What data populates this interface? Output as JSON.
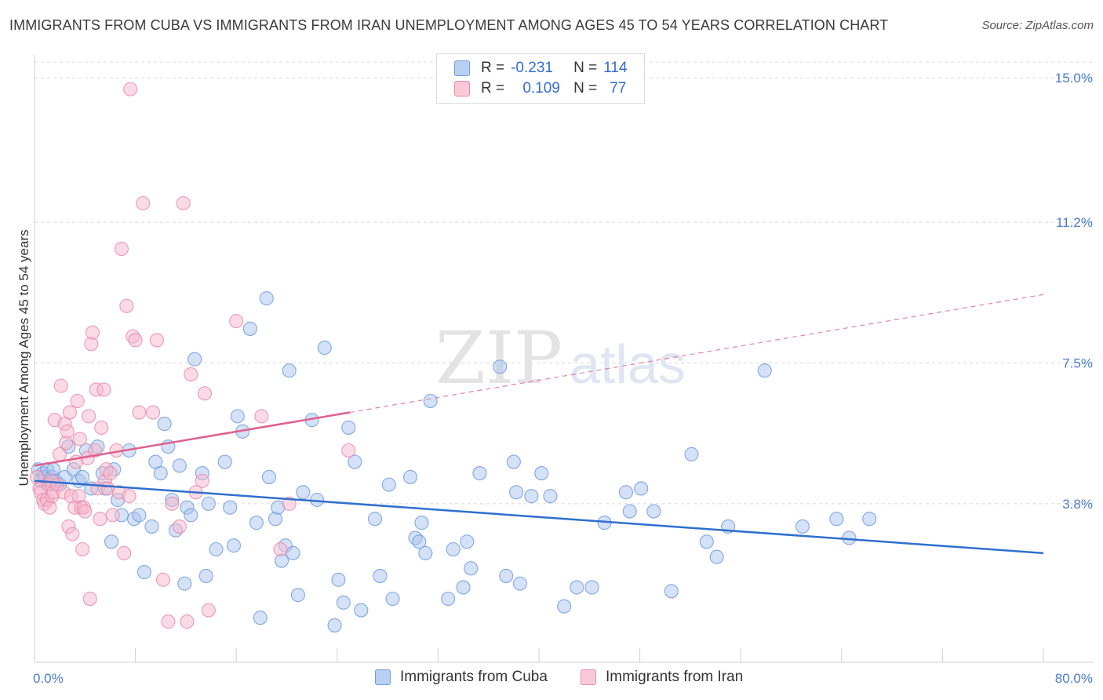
{
  "header": {
    "title": "IMMIGRANTS FROM CUBA VS IMMIGRANTS FROM IRAN UNEMPLOYMENT AMONG AGES 45 TO 54 YEARS CORRELATION CHART",
    "source": "Source: ZipAtlas.com"
  },
  "watermark": {
    "zip": "ZIP",
    "atlas": "atlas"
  },
  "legend": {
    "cuba": {
      "r_label": "R =",
      "r_value": "-0.231",
      "n_label": "N =",
      "n_value": "114"
    },
    "iran": {
      "r_label": "R =",
      "r_value": "0.109",
      "n_label": "N =",
      "n_value": "77"
    }
  },
  "bottom_legend": {
    "cuba": "Immigrants from Cuba",
    "iran": "Immigrants from Iran"
  },
  "colors": {
    "cuba_fill": "#a9c4ee",
    "cuba_stroke": "#6f9be0",
    "cuba_line": "#2f6fcf",
    "iran_fill": "#f5b8cb",
    "iran_stroke": "#e98aa8",
    "iran_line": "#e0608c",
    "tick_text": "#4a7bd0",
    "grid": "#d8d8d8"
  },
  "chart_data": {
    "type": "scatter",
    "title": "IMMIGRANTS FROM CUBA VS IMMIGRANTS FROM IRAN UNEMPLOYMENT AMONG AGES 45 TO 54 YEARS CORRELATION CHART",
    "xlabel": "",
    "ylabel": "Unemployment Among Ages 45 to 54 years",
    "xlim": [
      0,
      80
    ],
    "ylim": [
      0,
      15.6
    ],
    "x_tick_labels": [
      "0.0%",
      "80.0%"
    ],
    "y_ticks": [
      3.8,
      7.5,
      11.2,
      15.0
    ],
    "y_tick_labels": [
      "3.8%",
      "7.5%",
      "11.2%",
      "15.0%"
    ],
    "grid": true,
    "series": [
      {
        "name": "Immigrants from Cuba",
        "r": -0.231,
        "n": 114,
        "trend": {
          "x": [
            0,
            80
          ],
          "y": [
            4.4,
            2.5
          ],
          "style": "solid"
        },
        "points": [
          [
            0.3,
            4.7
          ],
          [
            0.5,
            4.4
          ],
          [
            0.7,
            4.6
          ],
          [
            0.8,
            4.5
          ],
          [
            1.0,
            4.7
          ],
          [
            1.2,
            4.3
          ],
          [
            1.4,
            4.5
          ],
          [
            1.5,
            4.7
          ],
          [
            1.7,
            4.4
          ],
          [
            2.0,
            4.3
          ],
          [
            2.4,
            4.5
          ],
          [
            2.7,
            5.3
          ],
          [
            3.1,
            4.7
          ],
          [
            3.5,
            4.4
          ],
          [
            3.8,
            4.5
          ],
          [
            4.1,
            5.2
          ],
          [
            4.5,
            4.2
          ],
          [
            5.0,
            5.3
          ],
          [
            5.4,
            4.6
          ],
          [
            5.6,
            4.2
          ],
          [
            6.1,
            2.8
          ],
          [
            6.3,
            4.7
          ],
          [
            6.6,
            3.9
          ],
          [
            6.9,
            3.5
          ],
          [
            7.5,
            5.2
          ],
          [
            7.9,
            3.4
          ],
          [
            8.3,
            3.5
          ],
          [
            8.7,
            2.0
          ],
          [
            9.3,
            3.2
          ],
          [
            9.6,
            4.9
          ],
          [
            10.0,
            4.6
          ],
          [
            10.3,
            5.9
          ],
          [
            10.6,
            5.3
          ],
          [
            10.9,
            3.9
          ],
          [
            11.2,
            3.1
          ],
          [
            11.5,
            4.8
          ],
          [
            11.9,
            1.7
          ],
          [
            12.1,
            3.7
          ],
          [
            12.4,
            3.5
          ],
          [
            12.7,
            7.6
          ],
          [
            13.3,
            4.6
          ],
          [
            13.6,
            1.9
          ],
          [
            13.8,
            3.8
          ],
          [
            14.4,
            2.6
          ],
          [
            15.1,
            4.9
          ],
          [
            15.5,
            3.7
          ],
          [
            15.8,
            2.7
          ],
          [
            16.1,
            6.1
          ],
          [
            16.5,
            5.7
          ],
          [
            17.1,
            8.4
          ],
          [
            17.6,
            3.3
          ],
          [
            17.9,
            0.8
          ],
          [
            18.4,
            9.2
          ],
          [
            18.6,
            4.5
          ],
          [
            19.1,
            3.4
          ],
          [
            19.3,
            3.7
          ],
          [
            19.6,
            2.3
          ],
          [
            19.9,
            2.7
          ],
          [
            20.2,
            7.3
          ],
          [
            20.5,
            2.5
          ],
          [
            20.9,
            1.4
          ],
          [
            21.3,
            4.1
          ],
          [
            22.0,
            6.0
          ],
          [
            22.4,
            3.9
          ],
          [
            23.0,
            7.9
          ],
          [
            23.8,
            0.6
          ],
          [
            24.1,
            1.8
          ],
          [
            24.5,
            1.2
          ],
          [
            24.9,
            5.8
          ],
          [
            25.4,
            4.9
          ],
          [
            25.9,
            1.0
          ],
          [
            27.0,
            3.4
          ],
          [
            27.4,
            1.9
          ],
          [
            28.1,
            4.3
          ],
          [
            28.4,
            1.3
          ],
          [
            29.8,
            4.5
          ],
          [
            30.2,
            2.9
          ],
          [
            30.5,
            2.8
          ],
          [
            30.7,
            3.3
          ],
          [
            31.0,
            2.5
          ],
          [
            31.4,
            6.5
          ],
          [
            32.8,
            1.3
          ],
          [
            33.2,
            2.6
          ],
          [
            34.0,
            1.6
          ],
          [
            34.3,
            2.8
          ],
          [
            34.6,
            2.1
          ],
          [
            35.3,
            4.6
          ],
          [
            36.9,
            7.4
          ],
          [
            37.4,
            1.9
          ],
          [
            38.0,
            4.9
          ],
          [
            38.2,
            4.1
          ],
          [
            38.5,
            1.7
          ],
          [
            39.4,
            4.0
          ],
          [
            40.2,
            4.6
          ],
          [
            40.9,
            4.0
          ],
          [
            42.0,
            1.1
          ],
          [
            43.0,
            1.6
          ],
          [
            44.2,
            1.6
          ],
          [
            45.2,
            3.3
          ],
          [
            46.9,
            4.1
          ],
          [
            47.2,
            3.6
          ],
          [
            48.1,
            4.2
          ],
          [
            49.1,
            3.6
          ],
          [
            50.5,
            1.5
          ],
          [
            52.1,
            5.1
          ],
          [
            53.3,
            2.8
          ],
          [
            54.1,
            2.4
          ],
          [
            55.0,
            3.2
          ],
          [
            57.9,
            7.3
          ],
          [
            60.9,
            3.2
          ],
          [
            63.6,
            3.4
          ],
          [
            64.6,
            2.9
          ],
          [
            66.2,
            3.4
          ]
        ]
      },
      {
        "name": "Immigrants from Iran",
        "r": 0.109,
        "n": 77,
        "trend": {
          "x": [
            0,
            25
          ],
          "y": [
            4.8,
            6.2
          ],
          "style": "solid",
          "extended_x": [
            25,
            80
          ],
          "extended_y": [
            6.2,
            9.3
          ],
          "extended_style": "dashed"
        },
        "points": [
          [
            0.2,
            4.5
          ],
          [
            0.4,
            4.2
          ],
          [
            0.5,
            4.1
          ],
          [
            0.7,
            3.9
          ],
          [
            0.8,
            3.8
          ],
          [
            1.0,
            3.9
          ],
          [
            1.1,
            4.3
          ],
          [
            1.2,
            3.7
          ],
          [
            1.3,
            4.4
          ],
          [
            1.4,
            4.0
          ],
          [
            1.5,
            4.1
          ],
          [
            1.6,
            6.0
          ],
          [
            1.8,
            4.3
          ],
          [
            2.0,
            5.1
          ],
          [
            2.1,
            6.9
          ],
          [
            2.3,
            4.1
          ],
          [
            2.4,
            5.9
          ],
          [
            2.5,
            5.4
          ],
          [
            2.6,
            5.7
          ],
          [
            2.7,
            3.2
          ],
          [
            2.8,
            6.2
          ],
          [
            2.9,
            4.0
          ],
          [
            3.0,
            3.0
          ],
          [
            3.2,
            3.7
          ],
          [
            3.3,
            4.9
          ],
          [
            3.4,
            6.5
          ],
          [
            3.5,
            4.0
          ],
          [
            3.6,
            5.5
          ],
          [
            3.7,
            3.7
          ],
          [
            3.8,
            2.6
          ],
          [
            3.9,
            3.7
          ],
          [
            4.0,
            3.6
          ],
          [
            4.2,
            5.0
          ],
          [
            4.3,
            6.1
          ],
          [
            4.4,
            1.3
          ],
          [
            4.5,
            8.0
          ],
          [
            4.6,
            8.3
          ],
          [
            4.8,
            5.2
          ],
          [
            4.9,
            6.8
          ],
          [
            5.0,
            4.2
          ],
          [
            5.2,
            3.4
          ],
          [
            5.3,
            5.8
          ],
          [
            5.5,
            6.8
          ],
          [
            5.6,
            4.4
          ],
          [
            5.7,
            4.7
          ],
          [
            5.8,
            4.2
          ],
          [
            6.0,
            4.6
          ],
          [
            6.2,
            3.5
          ],
          [
            6.5,
            5.2
          ],
          [
            6.7,
            4.1
          ],
          [
            6.9,
            10.5
          ],
          [
            7.1,
            2.5
          ],
          [
            7.3,
            9.0
          ],
          [
            7.5,
            4.0
          ],
          [
            7.6,
            14.7
          ],
          [
            7.8,
            8.2
          ],
          [
            8.0,
            8.1
          ],
          [
            8.3,
            6.2
          ],
          [
            8.6,
            11.7
          ],
          [
            9.4,
            6.2
          ],
          [
            9.7,
            8.1
          ],
          [
            10.2,
            1.8
          ],
          [
            10.6,
            0.7
          ],
          [
            10.9,
            3.8
          ],
          [
            11.5,
            3.2
          ],
          [
            11.8,
            11.7
          ],
          [
            12.1,
            0.7
          ],
          [
            12.4,
            7.2
          ],
          [
            12.8,
            4.1
          ],
          [
            13.3,
            4.4
          ],
          [
            13.5,
            6.7
          ],
          [
            13.8,
            1.0
          ],
          [
            16.0,
            8.6
          ],
          [
            18.0,
            6.1
          ],
          [
            19.5,
            2.6
          ],
          [
            20.2,
            3.8
          ],
          [
            24.9,
            5.2
          ]
        ]
      }
    ]
  }
}
